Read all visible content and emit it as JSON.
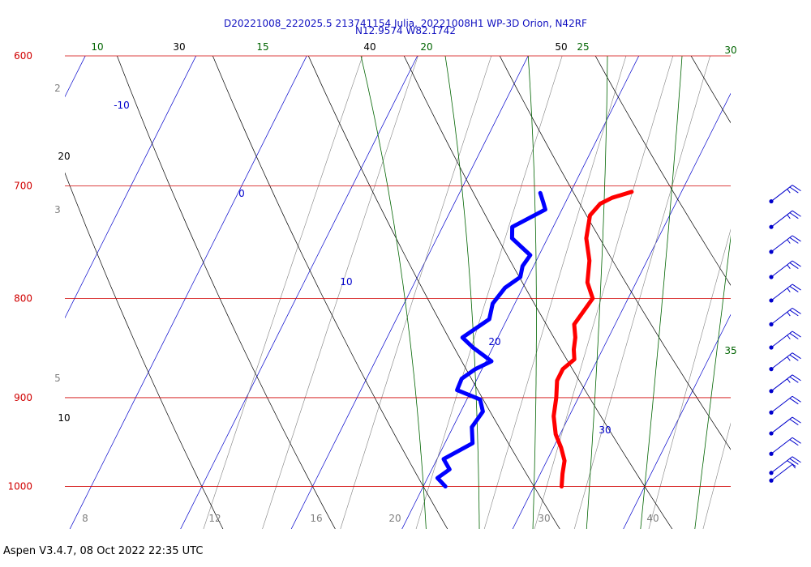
{
  "header": {
    "title_line1": "D20221008_222025.5 213741154 Julia, 20221008H1 WP-3D Orion, N42RF",
    "title_line2": "N12.9574 W82.1742"
  },
  "footer": {
    "text": "Aspen V3.4.7, 08 Oct 2022  22:35 UTC"
  },
  "colors": {
    "isobar": "#d00000",
    "isotherm": "#0000cc",
    "dry_adiabat": "#000000",
    "moist_adiabat": "#006400",
    "mixing_ratio": "#808080",
    "temperature_trace": "#ff0000",
    "dewpoint_trace": "#0000ff",
    "wind_barb": "#0000cc"
  },
  "chart_data": {
    "type": "line",
    "chart_kind": "skew-T log-P sounding",
    "pressure_levels": [
      "600",
      "700",
      "800",
      "900",
      "1000"
    ],
    "isotherm_labels": [
      "-10",
      "0",
      "10",
      "20",
      "30"
    ],
    "dry_adiabat_labels": [
      "30",
      "40",
      "50",
      "20",
      "10"
    ],
    "moist_adiabat_labels": [
      "10",
      "15",
      "20",
      "25",
      "30",
      "35"
    ],
    "mixing_ratio_labels": [
      "2",
      "3",
      "5",
      "8",
      "12",
      "16",
      "20",
      "30",
      "40"
    ],
    "series": [
      {
        "name": "",
        "trace": "temperature",
        "points": [
          {
            "p": 705,
            "t": 15.5
          },
          {
            "p": 710,
            "t": 14.0
          },
          {
            "p": 715,
            "t": 13.2
          },
          {
            "p": 725,
            "t": 12.8
          },
          {
            "p": 745,
            "t": 13.5
          },
          {
            "p": 765,
            "t": 14.8
          },
          {
            "p": 785,
            "t": 15.6
          },
          {
            "p": 800,
            "t": 16.8
          },
          {
            "p": 815,
            "t": 16.5
          },
          {
            "p": 825,
            "t": 16.3
          },
          {
            "p": 838,
            "t": 17.0
          },
          {
            "p": 850,
            "t": 17.4
          },
          {
            "p": 860,
            "t": 17.9
          },
          {
            "p": 870,
            "t": 17.3
          },
          {
            "p": 882,
            "t": 17.3
          },
          {
            "p": 900,
            "t": 18.0
          },
          {
            "p": 920,
            "t": 18.6
          },
          {
            "p": 940,
            "t": 19.6
          },
          {
            "p": 955,
            "t": 20.7
          },
          {
            "p": 970,
            "t": 21.6
          },
          {
            "p": 985,
            "t": 22.0
          },
          {
            "p": 1000,
            "t": 22.5
          }
        ]
      },
      {
        "name": "",
        "trace": "dewpoint",
        "points": [
          {
            "p": 706,
            "t": 7.3
          },
          {
            "p": 714,
            "t": 8.0
          },
          {
            "p": 720,
            "t": 8.5
          },
          {
            "p": 735,
            "t": 6.3
          },
          {
            "p": 745,
            "t": 6.8
          },
          {
            "p": 760,
            "t": 9.2
          },
          {
            "p": 770,
            "t": 9.0
          },
          {
            "p": 780,
            "t": 9.3
          },
          {
            "p": 790,
            "t": 8.4
          },
          {
            "p": 805,
            "t": 8.0
          },
          {
            "p": 820,
            "t": 8.4
          },
          {
            "p": 838,
            "t": 6.8
          },
          {
            "p": 848,
            "t": 8.2
          },
          {
            "p": 862,
            "t": 10.5
          },
          {
            "p": 870,
            "t": 9.4
          },
          {
            "p": 880,
            "t": 8.6
          },
          {
            "p": 892,
            "t": 8.7
          },
          {
            "p": 902,
            "t": 11.2
          },
          {
            "p": 915,
            "t": 12.0
          },
          {
            "p": 932,
            "t": 11.7
          },
          {
            "p": 950,
            "t": 12.5
          },
          {
            "p": 968,
            "t": 10.6
          },
          {
            "p": 980,
            "t": 11.6
          },
          {
            "p": 990,
            "t": 10.9
          },
          {
            "p": 1000,
            "t": 12.0
          }
        ]
      }
    ],
    "wind_barbs": [
      {
        "p": 713,
        "speed_kt": 25
      },
      {
        "p": 735,
        "speed_kt": 25
      },
      {
        "p": 757,
        "speed_kt": 25
      },
      {
        "p": 780,
        "speed_kt": 25
      },
      {
        "p": 802,
        "speed_kt": 25
      },
      {
        "p": 825,
        "speed_kt": 25
      },
      {
        "p": 848,
        "speed_kt": 25
      },
      {
        "p": 870,
        "speed_kt": 25
      },
      {
        "p": 893,
        "speed_kt": 25
      },
      {
        "p": 916,
        "speed_kt": 20
      },
      {
        "p": 939,
        "speed_kt": 20
      },
      {
        "p": 962,
        "speed_kt": 20
      },
      {
        "p": 984,
        "speed_kt": 30
      },
      {
        "p": 993,
        "speed_kt": 5
      }
    ]
  }
}
